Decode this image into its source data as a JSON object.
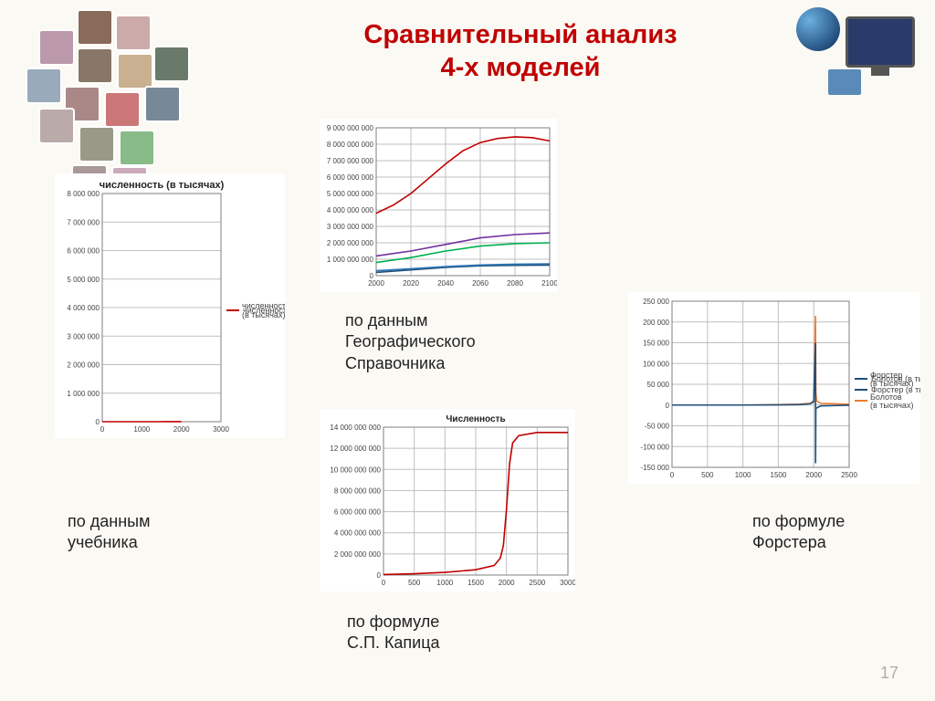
{
  "page_number": "17",
  "title_line1": "Сравнительный анализ",
  "title_line2": "4-х моделей",
  "captions": {
    "textbook": "по данным\nучебника",
    "geo": "по данным\nГеографического\nСправочника",
    "kapitsa": "по формуле\nС.П. Капица",
    "forster": "по формуле\nФорстера"
  },
  "chart_textbook": {
    "type": "line",
    "title": "численность (в тысячах)",
    "x": [
      0,
      200,
      400,
      600,
      800,
      1000,
      1200,
      1400,
      1600,
      1800,
      1900,
      1950,
      2000
    ],
    "y": [
      50,
      70,
      90,
      120,
      160,
      220,
      300,
      400,
      550,
      900,
      1600,
      2500,
      7200
    ],
    "xlim": [
      0,
      3000
    ],
    "ylim": [
      0,
      8000000
    ],
    "xticks": [
      0,
      1000,
      2000,
      3000
    ],
    "yticks": [
      0,
      1000000,
      2000000,
      3000000,
      4000000,
      5000000,
      6000000,
      7000000,
      8000000
    ],
    "line_color": "#c00000",
    "legend_label": "численность (в тысячах)",
    "title_fontsize": 11,
    "grid_color": "#bfbfbf",
    "background_color": "#ffffff"
  },
  "chart_geo": {
    "type": "line",
    "xlim": [
      2000,
      2100
    ],
    "ylim": [
      0,
      9000000000
    ],
    "xticks": [
      2000,
      2020,
      2040,
      2060,
      2080,
      2100
    ],
    "yticks": [
      0,
      1000000000,
      2000000000,
      3000000000,
      4000000000,
      5000000000,
      6000000000,
      7000000000,
      8000000000,
      9000000000
    ],
    "series": [
      {
        "color": "#c00000",
        "x": [
          2000,
          2010,
          2020,
          2030,
          2040,
          2050,
          2060,
          2070,
          2080,
          2090,
          2100
        ],
        "y": [
          3800000000,
          4300000000,
          5000000000,
          5900000000,
          6800000000,
          7600000000,
          8100000000,
          8350000000,
          8450000000,
          8400000000,
          8200000000
        ]
      },
      {
        "color": "#7030a0",
        "x": [
          2000,
          2020,
          2040,
          2060,
          2080,
          2100
        ],
        "y": [
          1200000000,
          1500000000,
          1900000000,
          2300000000,
          2500000000,
          2600000000
        ]
      },
      {
        "color": "#00b050",
        "x": [
          2000,
          2020,
          2040,
          2060,
          2080,
          2100
        ],
        "y": [
          800000000,
          1100000000,
          1500000000,
          1800000000,
          1950000000,
          2000000000
        ]
      },
      {
        "color": "#1f4e79",
        "x": [
          2000,
          2020,
          2040,
          2060,
          2080,
          2100
        ],
        "y": [
          200000000,
          350000000,
          500000000,
          600000000,
          630000000,
          640000000
        ]
      },
      {
        "color": "#2e75b6",
        "x": [
          2000,
          2020,
          2040,
          2060,
          2080,
          2100
        ],
        "y": [
          300000000,
          420000000,
          550000000,
          650000000,
          700000000,
          720000000
        ]
      }
    ],
    "grid_color": "#bfbfbf",
    "background_color": "#ffffff"
  },
  "chart_kapitsa": {
    "type": "line",
    "title": "Численность",
    "xlim": [
      0,
      3000
    ],
    "ylim": [
      0,
      14000000000
    ],
    "xticks": [
      0,
      500,
      1000,
      1500,
      2000,
      2500,
      3000
    ],
    "yticks": [
      0,
      2000000000,
      4000000000,
      6000000000,
      8000000000,
      10000000000,
      12000000000,
      14000000000
    ],
    "ytick_labels": [
      "0",
      "2 000 000 000",
      "4 000 000 000",
      "6 000 000 000",
      "8 000 000 000",
      "10 000 000 000",
      "12 000 000 000",
      "14 000 000 000"
    ],
    "x": [
      0,
      500,
      1000,
      1500,
      1800,
      1900,
      1950,
      2000,
      2050,
      2100,
      2200,
      2500,
      3000
    ],
    "y": [
      50000000,
      120000000,
      250000000,
      500000000,
      900000000,
      1600000000,
      2800000000,
      6200000000,
      10500000000,
      12500000000,
      13200000000,
      13500000000,
      13500000000
    ],
    "line_color": "#c00000",
    "title_fontsize": 10,
    "grid_color": "#bfbfbf",
    "background_color": "#ffffff"
  },
  "chart_forster": {
    "type": "line",
    "xlim": [
      0,
      2500
    ],
    "ylim": [
      -150000,
      250000
    ],
    "xticks": [
      0,
      500,
      1000,
      1500,
      2000,
      2500
    ],
    "yticks": [
      -150000,
      -100000,
      -50000,
      0,
      50000,
      100000,
      150000,
      200000,
      250000
    ],
    "series": [
      {
        "color": "#ed7d31",
        "label": "Болотов (в тысячах)",
        "x": [
          0,
          500,
          1000,
          1500,
          1800,
          1950,
          2000,
          2025,
          2030,
          2040,
          2100,
          2500
        ],
        "y": [
          0,
          0,
          0,
          1000,
          2000,
          4000,
          10000,
          215000,
          30000,
          10000,
          4000,
          2000
        ]
      },
      {
        "color": "#1f4e79",
        "label": "Форстер (в тысячах)",
        "x": [
          0,
          500,
          1000,
          1500,
          1800,
          1950,
          2000,
          2025,
          2026,
          2030,
          2100,
          2500
        ],
        "y": [
          0,
          0,
          0,
          500,
          1000,
          3000,
          8000,
          150000,
          -140000,
          -8000,
          -2000,
          -500
        ]
      }
    ],
    "grid_color": "#bfbfbf",
    "background_color": "#ffffff"
  }
}
